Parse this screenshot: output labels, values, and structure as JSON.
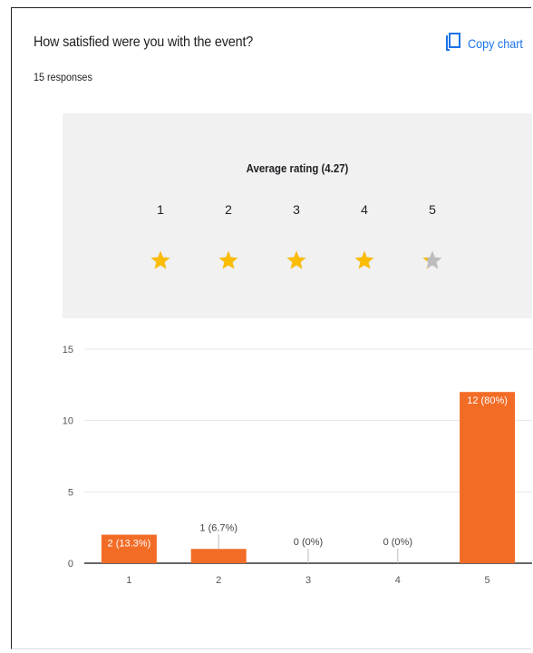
{
  "question": "How satisfied were you with the event?",
  "responses": "15 responses",
  "copy_button": {
    "label": "Copy chart",
    "icon": "copy-icon"
  },
  "rating": {
    "average_label": "Average rating (4.27)",
    "average": 4.27,
    "scale": [
      "1",
      "2",
      "3",
      "4",
      "5"
    ],
    "star_color": "#fbbc04",
    "empty_star_color": "#bdbdbd"
  },
  "colors": {
    "bar": "#f26c26",
    "accent": "#1a73e8",
    "panel": "#f1f1f1"
  },
  "chart_data": {
    "type": "bar",
    "categories": [
      "1",
      "2",
      "3",
      "4",
      "5"
    ],
    "values": [
      2,
      1,
      0,
      0,
      12
    ],
    "data_labels": [
      "2 (13.3%)",
      "1 (6.7%)",
      "0 (0%)",
      "0 (0%)",
      "12 (80%)"
    ],
    "yticks": [
      0,
      5,
      10,
      15
    ],
    "ylim": [
      0,
      15
    ],
    "grid": true,
    "xlabel": "",
    "ylabel": ""
  }
}
